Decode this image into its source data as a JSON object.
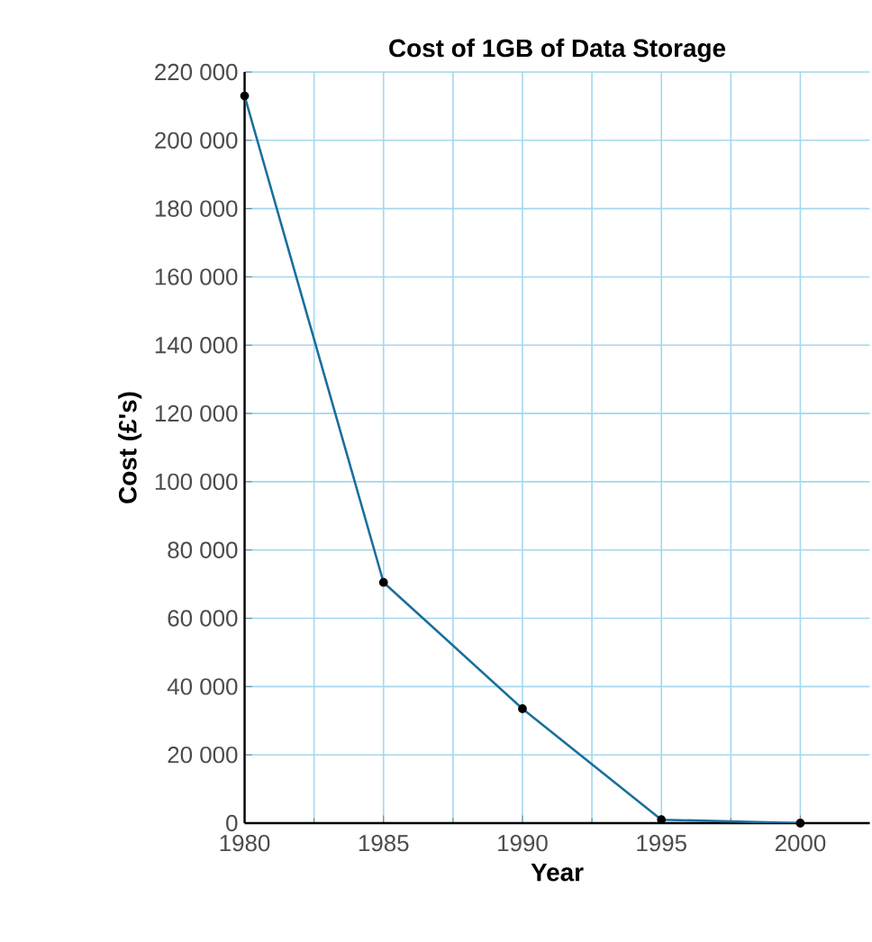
{
  "chart_data": {
    "type": "line",
    "title": "Cost of 1GB of Data Storage",
    "xlabel": "Year",
    "ylabel": "Cost (£'s)",
    "x": [
      1980,
      1985,
      1990,
      1995,
      2000
    ],
    "series": [
      {
        "color": "#1b6f9c",
        "values": [
          213000,
          70500,
          33500,
          1000,
          0
        ]
      }
    ],
    "xlim": [
      1980,
      2002.5
    ],
    "xticks": [
      1980,
      1985,
      1990,
      1995,
      2000
    ],
    "ylim": [
      0,
      220000
    ],
    "yticks": [
      {
        "value": 0,
        "label": "0"
      },
      {
        "value": 20000,
        "label": "20 000"
      },
      {
        "value": 40000,
        "label": "40 000"
      },
      {
        "value": 60000,
        "label": "60 000"
      },
      {
        "value": 80000,
        "label": "80 000"
      },
      {
        "value": 100000,
        "label": "100 000"
      },
      {
        "value": 120000,
        "label": "120 000"
      },
      {
        "value": 140000,
        "label": "140 000"
      },
      {
        "value": 160000,
        "label": "160 000"
      },
      {
        "value": 180000,
        "label": "180 000"
      },
      {
        "value": 200000,
        "label": "200 000"
      },
      {
        "value": 220000,
        "label": "220 000"
      }
    ],
    "grid": true,
    "marker": "circle",
    "line_style": "solid"
  }
}
